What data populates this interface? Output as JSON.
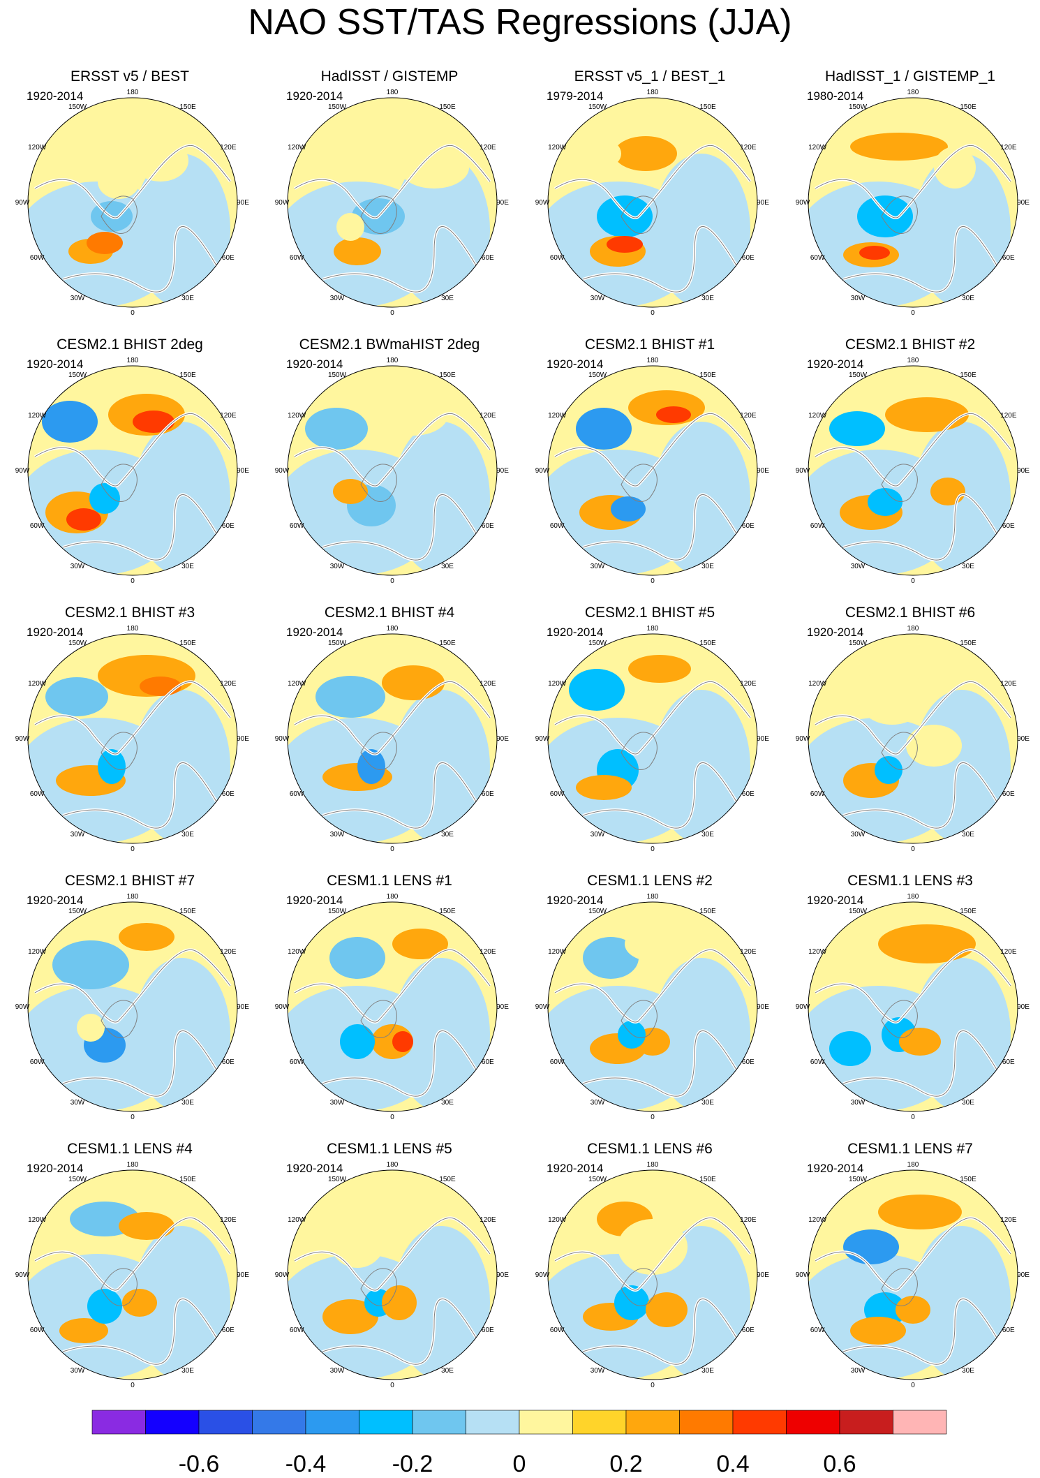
{
  "title": "NAO SST/TAS Regressions (JJA)",
  "longitude_labels": [
    "180",
    "150E",
    "120E",
    "90E",
    "60E",
    "30E",
    "0",
    "30W",
    "60W",
    "90W",
    "120W",
    "150W"
  ],
  "panels": [
    {
      "title": "ERSST v5 / BEST",
      "period": "1920-2014"
    },
    {
      "title": "HadISST / GISTEMP",
      "period": "1920-2014"
    },
    {
      "title": "ERSST v5_1 / BEST_1",
      "period": "1979-2014"
    },
    {
      "title": "HadISST_1 / GISTEMP_1",
      "period": "1980-2014"
    },
    {
      "title": "CESM2.1 BHIST 2deg",
      "period": "1920-2014"
    },
    {
      "title": "CESM2.1 BWmaHIST 2deg",
      "period": "1920-2014"
    },
    {
      "title": "CESM2.1 BHIST #1",
      "period": "1920-2014"
    },
    {
      "title": "CESM2.1 BHIST #2",
      "period": "1920-2014"
    },
    {
      "title": "CESM2.1 BHIST #3",
      "period": "1920-2014"
    },
    {
      "title": "CESM2.1 BHIST #4",
      "period": "1920-2014"
    },
    {
      "title": "CESM2.1 BHIST #5",
      "period": "1920-2014"
    },
    {
      "title": "CESM2.1 BHIST #6",
      "period": "1920-2014"
    },
    {
      "title": "CESM2.1 BHIST #7",
      "period": "1920-2014"
    },
    {
      "title": "CESM1.1 LENS #1",
      "period": "1920-2014"
    },
    {
      "title": "CESM1.1 LENS #2",
      "period": "1920-2014"
    },
    {
      "title": "CESM1.1 LENS #3",
      "period": "1920-2014"
    },
    {
      "title": "CESM1.1 LENS #4",
      "period": "1920-2014"
    },
    {
      "title": "CESM1.1 LENS #5",
      "period": "1920-2014"
    },
    {
      "title": "CESM1.1 LENS #6",
      "period": "1920-2014"
    },
    {
      "title": "CESM1.1 LENS #7",
      "period": "1920-2014"
    }
  ],
  "colorbar": {
    "colors": [
      "#8a2be2",
      "#1400ff",
      "#2a50e6",
      "#3479e8",
      "#2c9af0",
      "#00bfff",
      "#6fc6ef",
      "#b6e0f4",
      "#fff69e",
      "#ffd42a",
      "#ffa70d",
      "#ff7a00",
      "#ff3a00",
      "#ee0000",
      "#c81e1e",
      "#ffb5b5"
    ],
    "labels": [
      {
        "text": "-0.6",
        "index": 2
      },
      {
        "text": "-0.4",
        "index": 4
      },
      {
        "text": "-0.2",
        "index": 6
      },
      {
        "text": "0",
        "index": 8
      },
      {
        "text": "0.2",
        "index": 10
      },
      {
        "text": "0.4",
        "index": 12
      },
      {
        "text": "0.6",
        "index": 14
      }
    ]
  },
  "colors": {
    "neutral_negative": "#b6e0f4",
    "neutral_positive": "#fff69e",
    "land_outline": "#ffffff",
    "coast": "#808080"
  }
}
